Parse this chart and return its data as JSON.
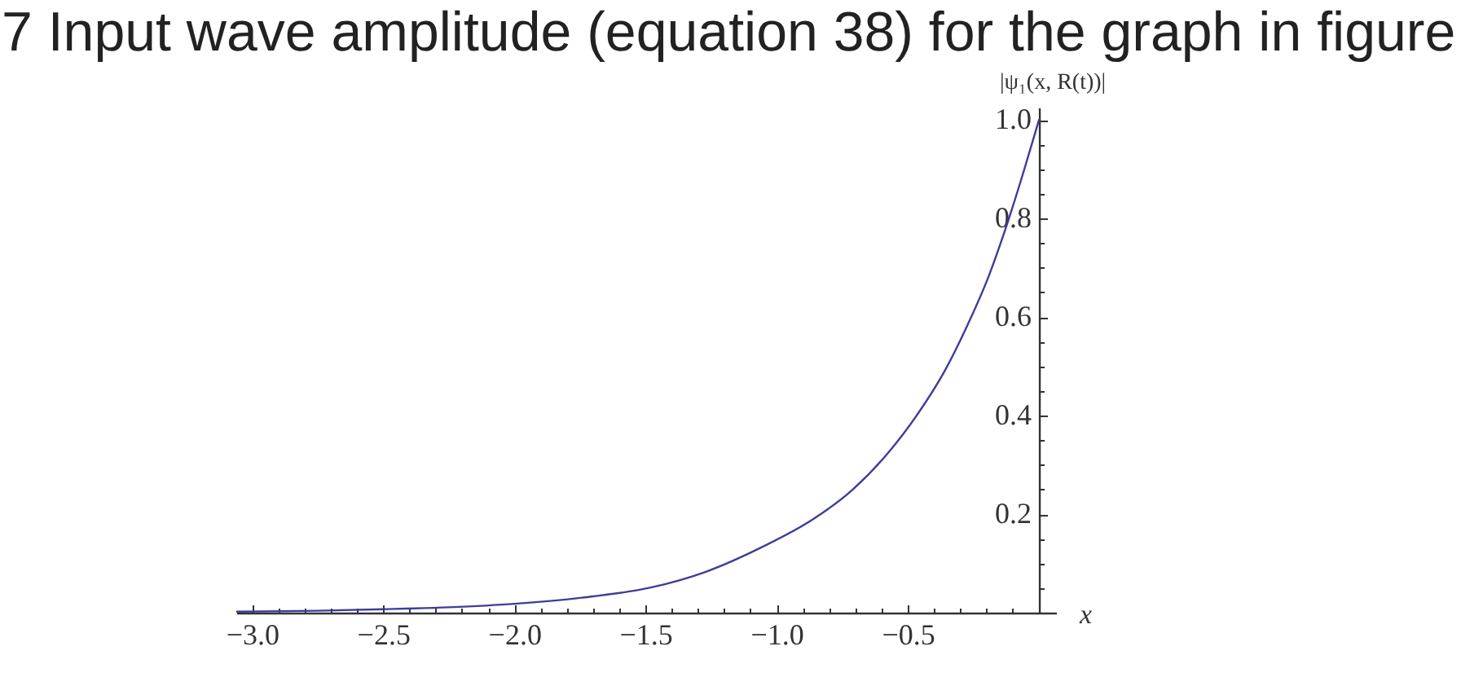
{
  "chart_data": {
    "type": "line",
    "title": "7 Input wave amplitude (equation 38) for the graph in figure",
    "xlabel": "x",
    "ylabel": "|ψ₁(x, R(t))|",
    "x": [
      -3.06,
      -2.75,
      -2.5,
      -2.25,
      -2.0,
      -1.75,
      -1.48,
      -1.27,
      -1.06,
      -0.86,
      -0.71,
      -0.59,
      -0.46,
      -0.36,
      -0.28,
      -0.19,
      -0.13,
      -0.07,
      0
    ],
    "series": [
      {
        "color": "#3d3d99",
        "values": [
          0.002,
          0.004,
          0.007,
          0.011,
          0.018,
          0.03,
          0.051,
          0.083,
          0.132,
          0.19,
          0.25,
          0.315,
          0.405,
          0.49,
          0.575,
          0.685,
          0.775,
          0.875,
          1.0
        ]
      }
    ],
    "xlim": [
      -3.06,
      0.065
    ],
    "ylim": [
      0,
      1.025
    ],
    "xticks": [
      {
        "value": -3,
        "label": "−3.0"
      },
      {
        "value": -2.9,
        "label": null
      },
      {
        "value": -2.8,
        "label": null
      },
      {
        "value": -2.7,
        "label": null
      },
      {
        "value": -2.6,
        "label": null
      },
      {
        "value": -2.5,
        "label": "−2.5"
      },
      {
        "value": -2.4,
        "label": null
      },
      {
        "value": -2.3,
        "label": null
      },
      {
        "value": -2.2,
        "label": null
      },
      {
        "value": -2.1,
        "label": null
      },
      {
        "value": -2,
        "label": "−2.0"
      },
      {
        "value": -1.9,
        "label": null
      },
      {
        "value": -1.8,
        "label": null
      },
      {
        "value": -1.7,
        "label": null
      },
      {
        "value": -1.6,
        "label": null
      },
      {
        "value": -1.5,
        "label": "−1.5"
      },
      {
        "value": -1.4,
        "label": null
      },
      {
        "value": -1.3,
        "label": null
      },
      {
        "value": -1.2,
        "label": null
      },
      {
        "value": -1.1,
        "label": null
      },
      {
        "value": -1,
        "label": "−1.0"
      },
      {
        "value": -0.9,
        "label": null
      },
      {
        "value": -0.8,
        "label": null
      },
      {
        "value": -0.7,
        "label": null
      },
      {
        "value": -0.6,
        "label": null
      },
      {
        "value": -0.5,
        "label": "−0.5"
      },
      {
        "value": -0.4,
        "label": null
      },
      {
        "value": -0.3,
        "label": null
      },
      {
        "value": -0.2,
        "label": null
      },
      {
        "value": -0.1,
        "label": null
      }
    ],
    "yticks": [
      {
        "value": 0.05,
        "label": null
      },
      {
        "value": 0.1,
        "label": null
      },
      {
        "value": 0.15,
        "label": null
      },
      0.2,
      {
        "value": 0.25,
        "label": null
      },
      {
        "value": 0.3,
        "label": null
      },
      {
        "value": 0.35,
        "label": null
      },
      0.4,
      {
        "value": 0.45,
        "label": null
      },
      {
        "value": 0.5,
        "label": null
      },
      {
        "value": 0.55,
        "label": null
      },
      0.6,
      {
        "value": 0.65,
        "label": null
      },
      {
        "value": 0.7,
        "label": null
      },
      {
        "value": 0.75,
        "label": null
      },
      0.8,
      {
        "value": 0.85,
        "label": null
      },
      {
        "value": 0.9,
        "label": null
      },
      {
        "value": 0.95,
        "label": null
      },
      {
        "value": 1,
        "label": "1.0"
      }
    ]
  }
}
